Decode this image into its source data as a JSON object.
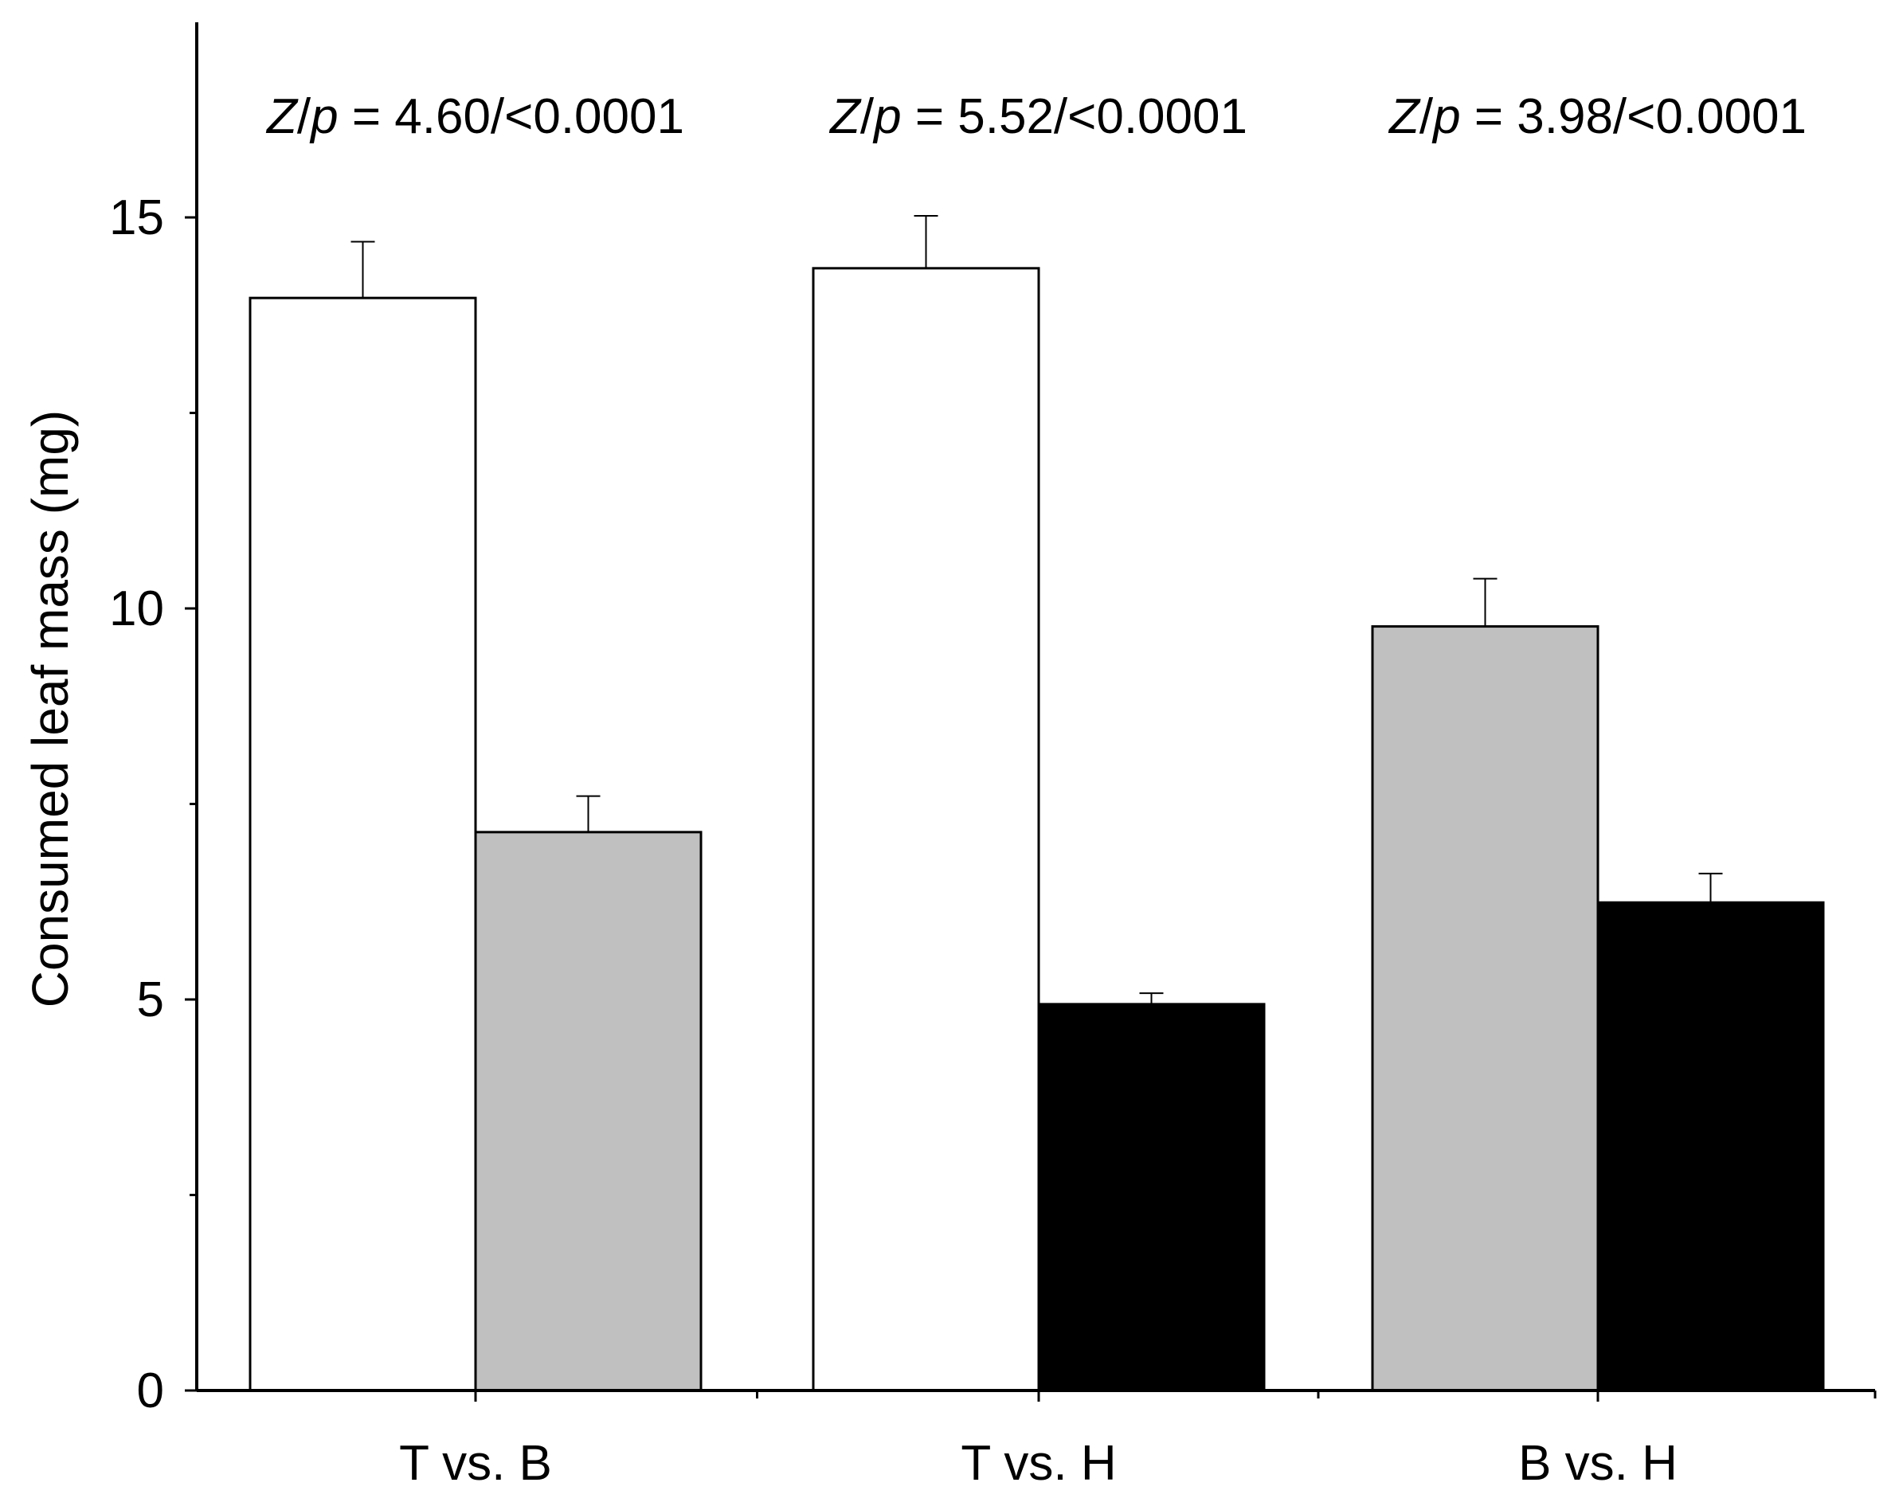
{
  "chart_data": {
    "type": "bar",
    "title": "",
    "xlabel": "",
    "ylabel": "Consumed leaf mass (mg)",
    "ylim": [
      0,
      17
    ],
    "yticks_major": [
      0,
      5,
      10,
      15
    ],
    "yticks_minor": [
      2.5,
      7.5,
      12.5
    ],
    "grid": false,
    "legend": "none",
    "colors": {
      "T": "#ffffff",
      "B": "#c0c0c0",
      "H": "#000000",
      "stroke": "#000000"
    },
    "groups": [
      {
        "label": "T vs. B",
        "annotation": {
          "z_var": "Z",
          "slash": "/",
          "p_var": "p",
          "value": " = 4.60/<0.0001"
        },
        "bars": [
          {
            "series": "T",
            "value": 13.97,
            "error": 0.72
          },
          {
            "series": "B",
            "value": 7.14,
            "error": 0.46
          }
        ]
      },
      {
        "label": "T vs. H",
        "annotation": {
          "z_var": "Z",
          "slash": "/",
          "p_var": "p",
          "value": " = 5.52/<0.0001"
        },
        "bars": [
          {
            "series": "T",
            "value": 14.35,
            "error": 0.67
          },
          {
            "series": "H",
            "value": 4.94,
            "error": 0.14
          }
        ]
      },
      {
        "label": "B vs. H",
        "annotation": {
          "z_var": "Z",
          "slash": "/",
          "p_var": "p",
          "value": " = 3.98/<0.0001"
        },
        "bars": [
          {
            "series": "B",
            "value": 9.77,
            "error": 0.61
          },
          {
            "series": "H",
            "value": 6.24,
            "error": 0.37
          }
        ]
      }
    ]
  }
}
